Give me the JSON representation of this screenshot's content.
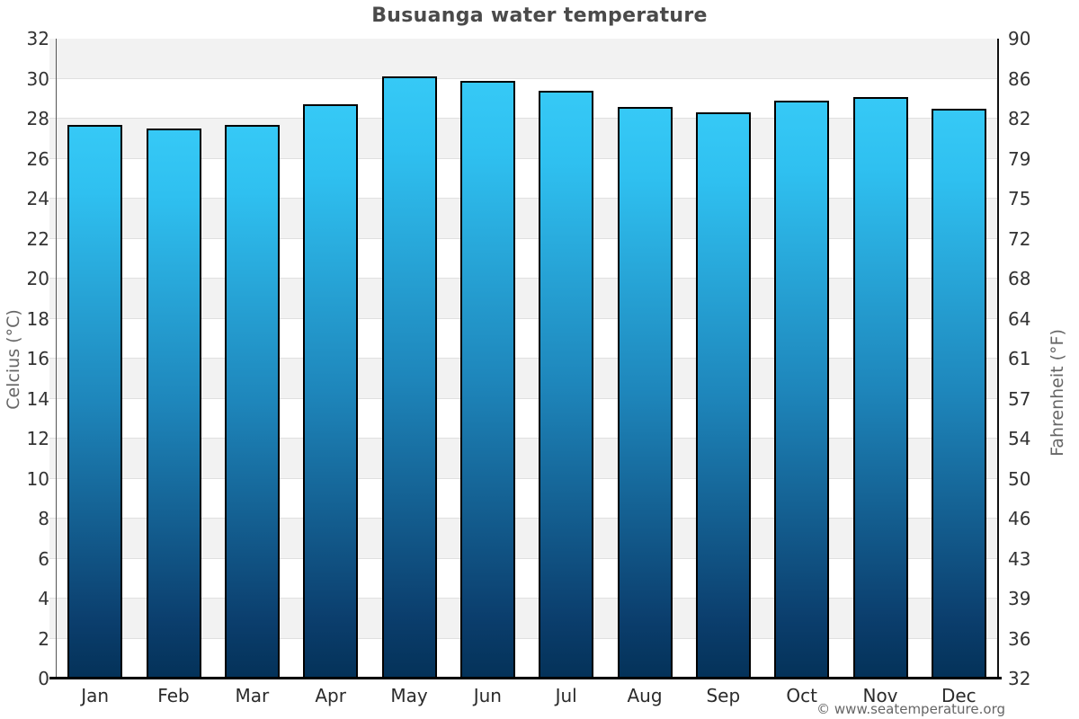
{
  "page": {
    "title": "Busuanga water temperature",
    "footer": "© www.seatemperature.org"
  },
  "chart_data": {
    "type": "bar",
    "title": "Busuanga water temperature",
    "categories": [
      "Jan",
      "Feb",
      "Mar",
      "Apr",
      "May",
      "Jun",
      "Jul",
      "Aug",
      "Sep",
      "Oct",
      "Nov",
      "Dec"
    ],
    "values": [
      27.7,
      27.5,
      27.7,
      28.7,
      30.1,
      29.9,
      29.4,
      28.6,
      28.3,
      28.9,
      29.1,
      28.5
    ],
    "unit": "°C",
    "ylabel_left": "Celcius (°C)",
    "ylabel_right": "Fahrenheit (°F)",
    "ylim_left": [
      0,
      32
    ],
    "yticks_left": [
      0,
      2,
      4,
      6,
      8,
      10,
      12,
      14,
      16,
      18,
      20,
      22,
      24,
      26,
      28,
      30,
      32
    ],
    "yticks_right_labels": [
      "32",
      "36",
      "39",
      "43",
      "46",
      "50",
      "54",
      "57",
      "61",
      "64",
      "68",
      "72",
      "75",
      "79",
      "82",
      "86",
      "90"
    ],
    "grid": "horizontal-striped-bands",
    "legend": "none",
    "colors": {
      "bar_gradient": [
        [
          0,
          "#36c9f6"
        ],
        [
          12,
          "#2fc0f0"
        ],
        [
          50,
          "#1e86bb"
        ],
        [
          90,
          "#0b3e6d"
        ],
        [
          100,
          "#043259"
        ]
      ],
      "bar_border": "#000000",
      "band_gray": "#f2f2f2",
      "band_white": "#ffffff",
      "gridline": "#e0e0e0",
      "axis_bottom": "#000000",
      "axis_left": "#555555",
      "axis_right": "#111111",
      "title_text": "#4a4a4a",
      "tick_text": "#333333",
      "axis_label_text": "#666666",
      "footer_text": "#666666"
    }
  }
}
